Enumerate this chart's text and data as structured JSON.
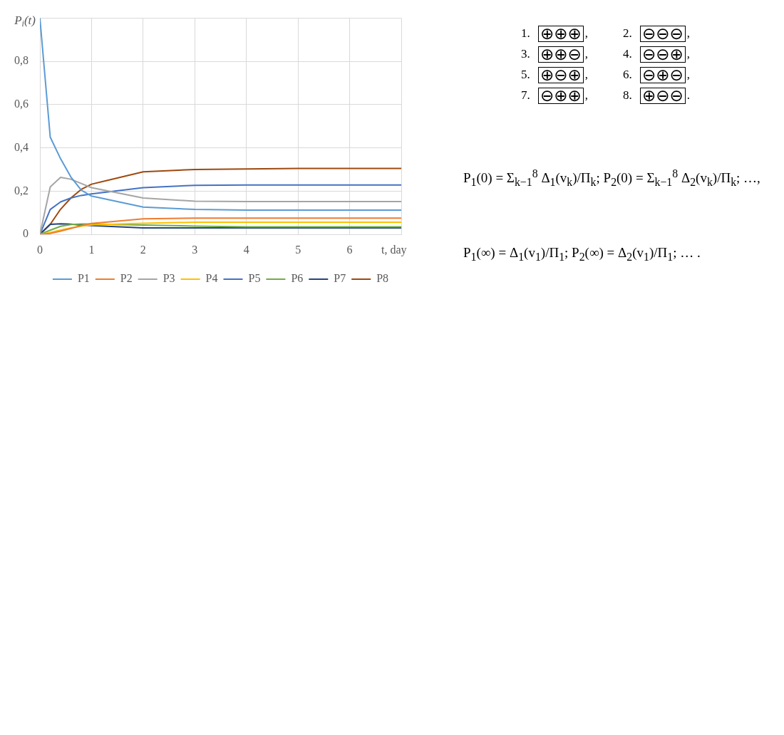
{
  "chart_data": {
    "type": "line",
    "x": [
      0,
      0.2,
      0.4,
      0.6,
      0.8,
      1,
      2,
      3,
      4,
      5,
      6,
      7
    ],
    "series": [
      {
        "name": "P1",
        "color": "#5b9bd5",
        "values": [
          1,
          0.45,
          0.35,
          0.265,
          0.205,
          0.177,
          0.126,
          0.115,
          0.112,
          0.112,
          0.112,
          0.112
        ]
      },
      {
        "name": "P2",
        "color": "#ed7d31",
        "values": [
          0,
          0.004,
          0.015,
          0.027,
          0.04,
          0.05,
          0.072,
          0.075,
          0.075,
          0.075,
          0.075,
          0.075
        ]
      },
      {
        "name": "P3",
        "color": "#a5a5a5",
        "values": [
          0,
          0.219,
          0.264,
          0.255,
          0.235,
          0.216,
          0.168,
          0.153,
          0.152,
          0.152,
          0.152,
          0.152
        ]
      },
      {
        "name": "P4",
        "color": "#ffc000",
        "values": [
          0,
          0.008,
          0.02,
          0.03,
          0.038,
          0.044,
          0.051,
          0.056,
          0.056,
          0.056,
          0.056,
          0.056
        ]
      },
      {
        "name": "P5",
        "color": "#4472c4",
        "values": [
          0,
          0.115,
          0.15,
          0.168,
          0.18,
          0.187,
          0.216,
          0.227,
          0.228,
          0.228,
          0.228,
          0.228
        ]
      },
      {
        "name": "P6",
        "color": "#70ad47",
        "values": [
          0,
          0.019,
          0.037,
          0.045,
          0.048,
          0.048,
          0.043,
          0.038,
          0.035,
          0.035,
          0.035,
          0.035
        ]
      },
      {
        "name": "P7",
        "color": "#264478",
        "values": [
          0,
          0.046,
          0.049,
          0.047,
          0.043,
          0.04,
          0.03,
          0.03,
          0.03,
          0.03,
          0.03,
          0.03
        ]
      },
      {
        "name": "P8",
        "color": "#9e480e",
        "values": [
          0,
          0.046,
          0.116,
          0.168,
          0.208,
          0.232,
          0.289,
          0.3,
          0.302,
          0.305,
          0.305,
          0.305
        ]
      }
    ],
    "xlim": [
      0,
      7
    ],
    "xticks": [
      0,
      1,
      2,
      3,
      4,
      5,
      6,
      {
        "value": 7,
        "label": null
      }
    ],
    "ylim": [
      0,
      1
    ],
    "yticks": [
      0,
      {
        "value": 0.2,
        "label": "0,2"
      },
      {
        "value": 0.4,
        "label": "0,4"
      },
      {
        "value": 0.6,
        "label": "0,6"
      },
      {
        "value": 0.8,
        "label": "0,8"
      },
      {
        "value": 1,
        "label": null
      }
    ],
    "xlabel": "t, day",
    "ylabel": "P$_{i}$(t)",
    "grid": true,
    "legend": "bottom",
    "marker": "none",
    "annotations": [
      "1. ⊕⊕⊕,",
      "2. ⊖⊖⊖,",
      "3. ⊕⊕⊖,",
      "4. ⊖⊖⊕,",
      "5. ⊕⊖⊕,",
      "6. ⊖⊕⊖,",
      "7. ⊖⊕⊕,",
      "8. ⊕⊖⊖.",
      "P$_{1}$(0) = Σ$_{k−1}$$^{8}$ Δ$_{1}$(v$_{k}$)/Π$_{k}$; P$_{2}$(0) = Σ$_{k−1}$$^{8}$ Δ$_{2}$(v$_{k}$)/Π$_{k}$; …,",
      "P$_{1}$(∞) = Δ$_{1}$(v$_{1}$)/Π$_{1}$; P$_{2}$(∞) = Δ$_{2}$(v$_{1}$)/Π$_{1}$; … ."
    ]
  }
}
